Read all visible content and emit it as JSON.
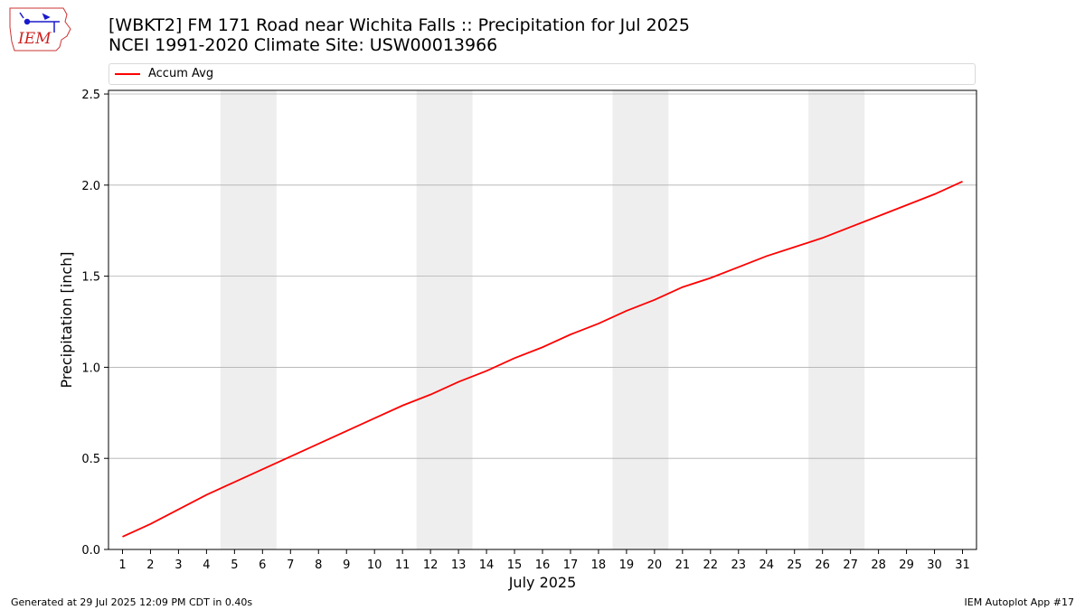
{
  "header": {
    "title_line1": "[WBKT2] FM 171 Road near Wichita Falls :: Precipitation for Jul 2025",
    "title_line2": "NCEI 1991-2020 Climate Site: USW00013966",
    "logo_text": "IEM"
  },
  "footer": {
    "generated": "Generated at 29 Jul 2025 12:09 PM CDT in 0.40s",
    "app": "IEM Autoplot App #17"
  },
  "chart_data": {
    "type": "line",
    "xlabel": "July 2025",
    "ylabel": "Precipitation [inch]",
    "xlim": [
      0.5,
      31.5
    ],
    "ylim": [
      0,
      2.52
    ],
    "yticks": [
      0.0,
      0.5,
      1.0,
      1.5,
      2.0,
      2.5
    ],
    "ytick_labels": [
      "0.0",
      "0.5",
      "1.0",
      "1.5",
      "2.0",
      "2.5"
    ],
    "x": [
      1,
      2,
      3,
      4,
      5,
      6,
      7,
      8,
      9,
      10,
      11,
      12,
      13,
      14,
      15,
      16,
      17,
      18,
      19,
      20,
      21,
      22,
      23,
      24,
      25,
      26,
      27,
      28,
      29,
      30,
      31
    ],
    "series": [
      {
        "name": "Accum Avg",
        "color": "#ff0000",
        "values": [
          0.07,
          0.14,
          0.22,
          0.3,
          0.37,
          0.44,
          0.51,
          0.58,
          0.65,
          0.72,
          0.79,
          0.85,
          0.92,
          0.98,
          1.05,
          1.11,
          1.18,
          1.24,
          1.31,
          1.37,
          1.44,
          1.49,
          1.55,
          1.61,
          1.66,
          1.71,
          1.77,
          1.83,
          1.89,
          1.95,
          2.02
        ]
      }
    ],
    "weekend_shading": [
      [
        4.5,
        6.5
      ],
      [
        11.5,
        13.5
      ],
      [
        18.5,
        20.5
      ],
      [
        25.5,
        27.5
      ]
    ],
    "shading_color": "#eeeeee",
    "grid": "horizontal",
    "grid_color": "#b0b0b0",
    "legend_position": "top"
  }
}
